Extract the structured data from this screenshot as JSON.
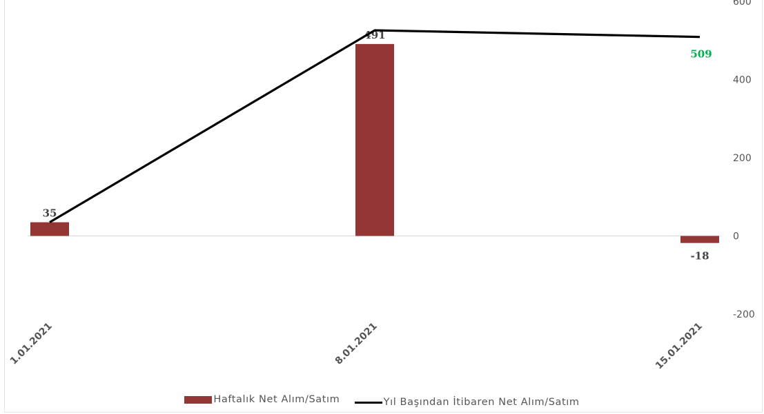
{
  "chart_data": {
    "type": "bar",
    "categories": [
      "1.01.2021",
      "8.01.2021",
      "15.01.2021"
    ],
    "series": [
      {
        "name": "Haftalık Net Alım/Satım",
        "kind": "bar",
        "values": [
          35,
          491,
          -18
        ],
        "color": "#943634",
        "labels": [
          "35",
          "491",
          "-18"
        ]
      },
      {
        "name": "Yıl Başından İtibaren Net Alım/Satım",
        "kind": "line",
        "values": [
          35,
          526,
          509
        ],
        "color": "#000000",
        "labels": [
          "509"
        ],
        "label_color": "#00b050"
      }
    ],
    "ylim": [
      -200,
      600
    ],
    "yticks": [
      "-200",
      "0",
      "200",
      "400",
      "600"
    ],
    "y_axis_side": "right",
    "grid": false,
    "legend": "bottom"
  },
  "legend": {
    "bar_label": "Haftalık Net Alım/Satım",
    "line_label": "Yıl Başından İtibaren Net Alım/Satım"
  }
}
